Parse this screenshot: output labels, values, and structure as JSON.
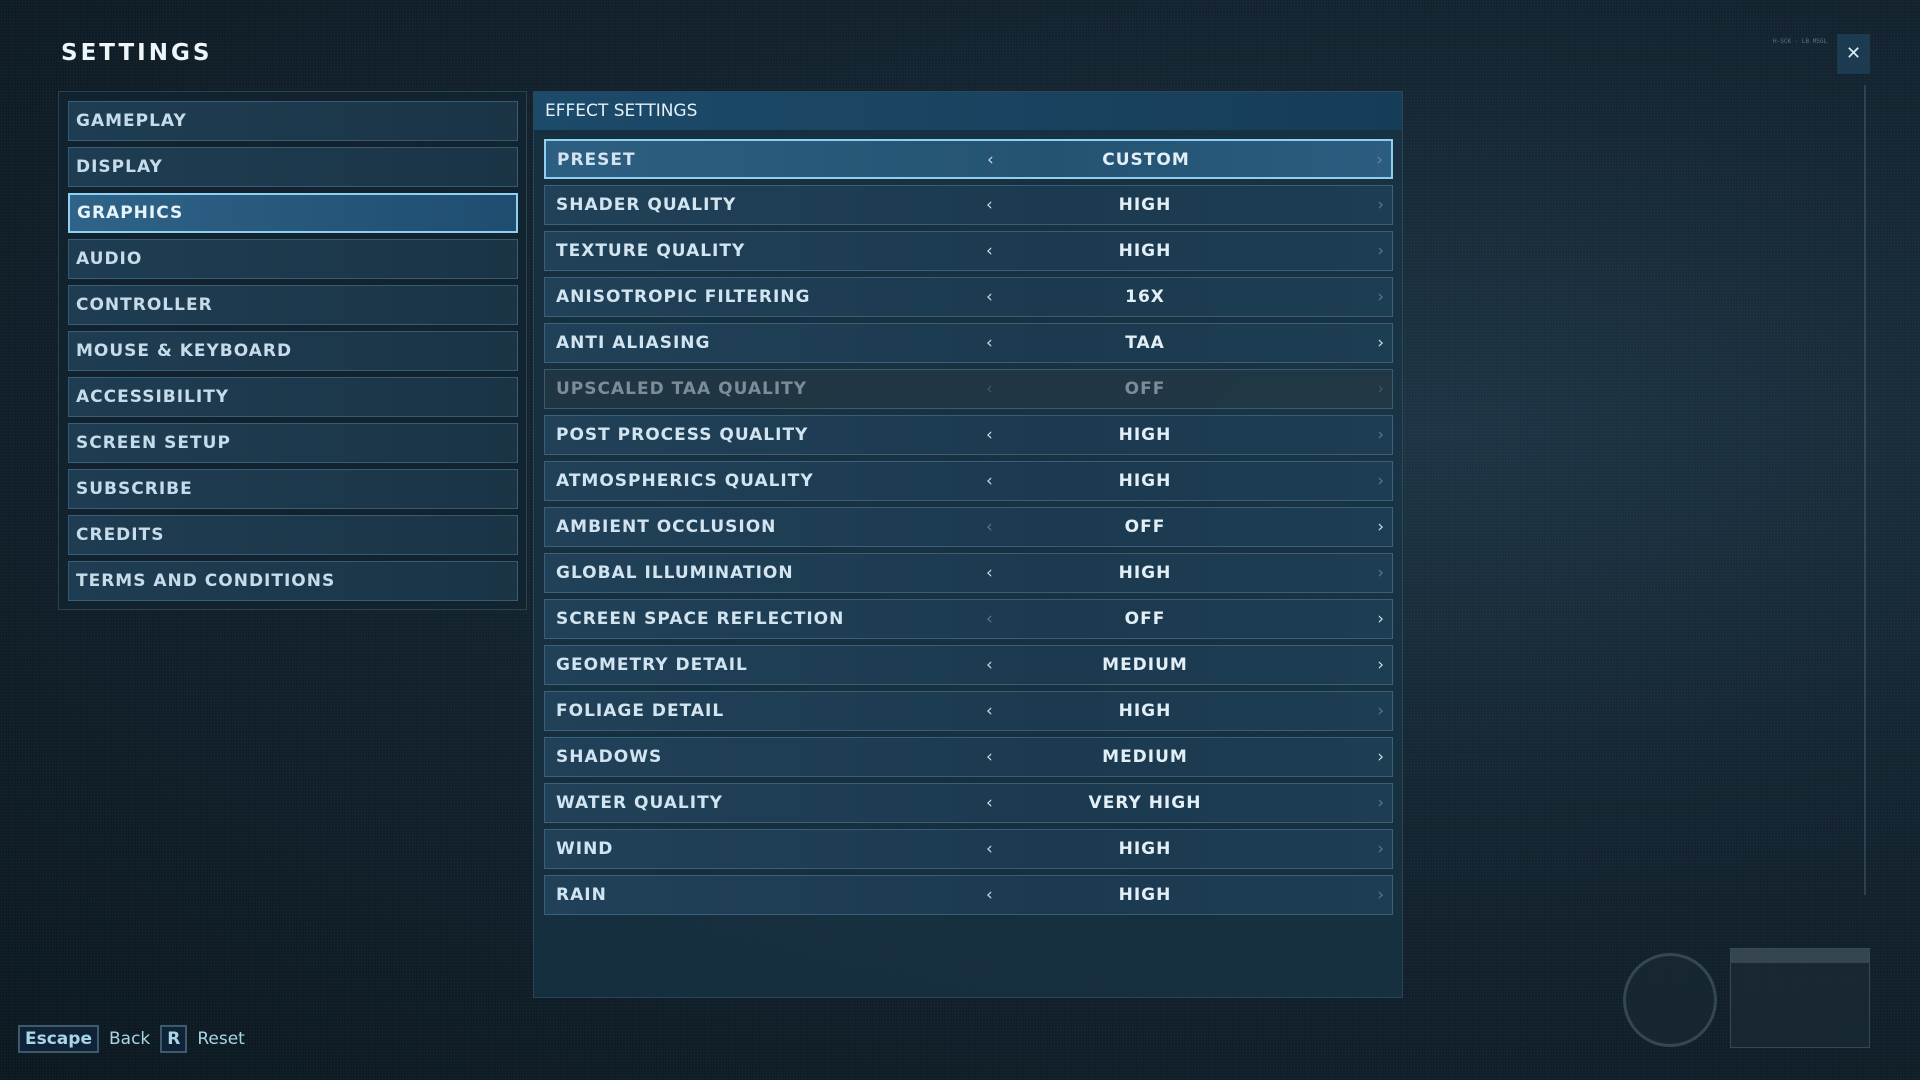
{
  "title": "SETTINGS",
  "hud_text": "H-SCK - LB MSGL",
  "sidebar": {
    "items": [
      {
        "label": "GAMEPLAY",
        "active": false
      },
      {
        "label": "DISPLAY",
        "active": false
      },
      {
        "label": "GRAPHICS",
        "active": true
      },
      {
        "label": "AUDIO",
        "active": false
      },
      {
        "label": "CONTROLLER",
        "active": false
      },
      {
        "label": "MOUSE & KEYBOARD",
        "active": false
      },
      {
        "label": "ACCESSIBILITY",
        "active": false
      },
      {
        "label": "SCREEN SETUP",
        "active": false
      },
      {
        "label": "SUBSCRIBE",
        "active": false
      },
      {
        "label": "CREDITS",
        "active": false
      },
      {
        "label": "TERMS AND CONDITIONS",
        "active": false
      }
    ]
  },
  "main": {
    "header": "EFFECT SETTINGS",
    "rows": [
      {
        "label": "PRESET",
        "value": "CUSTOM",
        "active": true,
        "disabled": false,
        "left": true,
        "right": false
      },
      {
        "label": "SHADER QUALITY",
        "value": "HIGH",
        "active": false,
        "disabled": false,
        "left": true,
        "right": false
      },
      {
        "label": "TEXTURE QUALITY",
        "value": "HIGH",
        "active": false,
        "disabled": false,
        "left": true,
        "right": false
      },
      {
        "label": "ANISOTROPIC FILTERING",
        "value": "16X",
        "active": false,
        "disabled": false,
        "left": true,
        "right": false
      },
      {
        "label": "ANTI ALIASING",
        "value": "TAA",
        "active": false,
        "disabled": false,
        "left": true,
        "right": true
      },
      {
        "label": "UPSCALED TAA QUALITY",
        "value": "OFF",
        "active": false,
        "disabled": true,
        "left": false,
        "right": false
      },
      {
        "label": "POST PROCESS QUALITY",
        "value": "HIGH",
        "active": false,
        "disabled": false,
        "left": true,
        "right": false
      },
      {
        "label": "ATMOSPHERICS QUALITY",
        "value": "HIGH",
        "active": false,
        "disabled": false,
        "left": true,
        "right": false
      },
      {
        "label": "AMBIENT OCCLUSION",
        "value": "OFF",
        "active": false,
        "disabled": false,
        "left": false,
        "right": true
      },
      {
        "label": "GLOBAL ILLUMINATION",
        "value": "HIGH",
        "active": false,
        "disabled": false,
        "left": true,
        "right": false
      },
      {
        "label": "SCREEN SPACE REFLECTION",
        "value": "OFF",
        "active": false,
        "disabled": false,
        "left": false,
        "right": true
      },
      {
        "label": "GEOMETRY DETAIL",
        "value": "MEDIUM",
        "active": false,
        "disabled": false,
        "left": true,
        "right": true
      },
      {
        "label": "FOLIAGE DETAIL",
        "value": "HIGH",
        "active": false,
        "disabled": false,
        "left": true,
        "right": false
      },
      {
        "label": "SHADOWS",
        "value": "MEDIUM",
        "active": false,
        "disabled": false,
        "left": true,
        "right": true
      },
      {
        "label": "WATER QUALITY",
        "value": "VERY HIGH",
        "active": false,
        "disabled": false,
        "left": true,
        "right": false
      },
      {
        "label": "WIND",
        "value": "HIGH",
        "active": false,
        "disabled": false,
        "left": true,
        "right": false
      },
      {
        "label": "RAIN",
        "value": "HIGH",
        "active": false,
        "disabled": false,
        "left": true,
        "right": false
      }
    ]
  },
  "footer": {
    "escape_key": "Escape",
    "back_label": "Back",
    "reset_key": "R",
    "reset_label": "Reset"
  },
  "icons": {
    "close": "collapse-fullscreen-icon",
    "left": "chevron-left-icon",
    "right": "chevron-right-icon",
    "logo": "jurassic-world-logo"
  },
  "colors": {
    "accent": "#8fd0f2",
    "active_bg": "#2d5f82"
  }
}
